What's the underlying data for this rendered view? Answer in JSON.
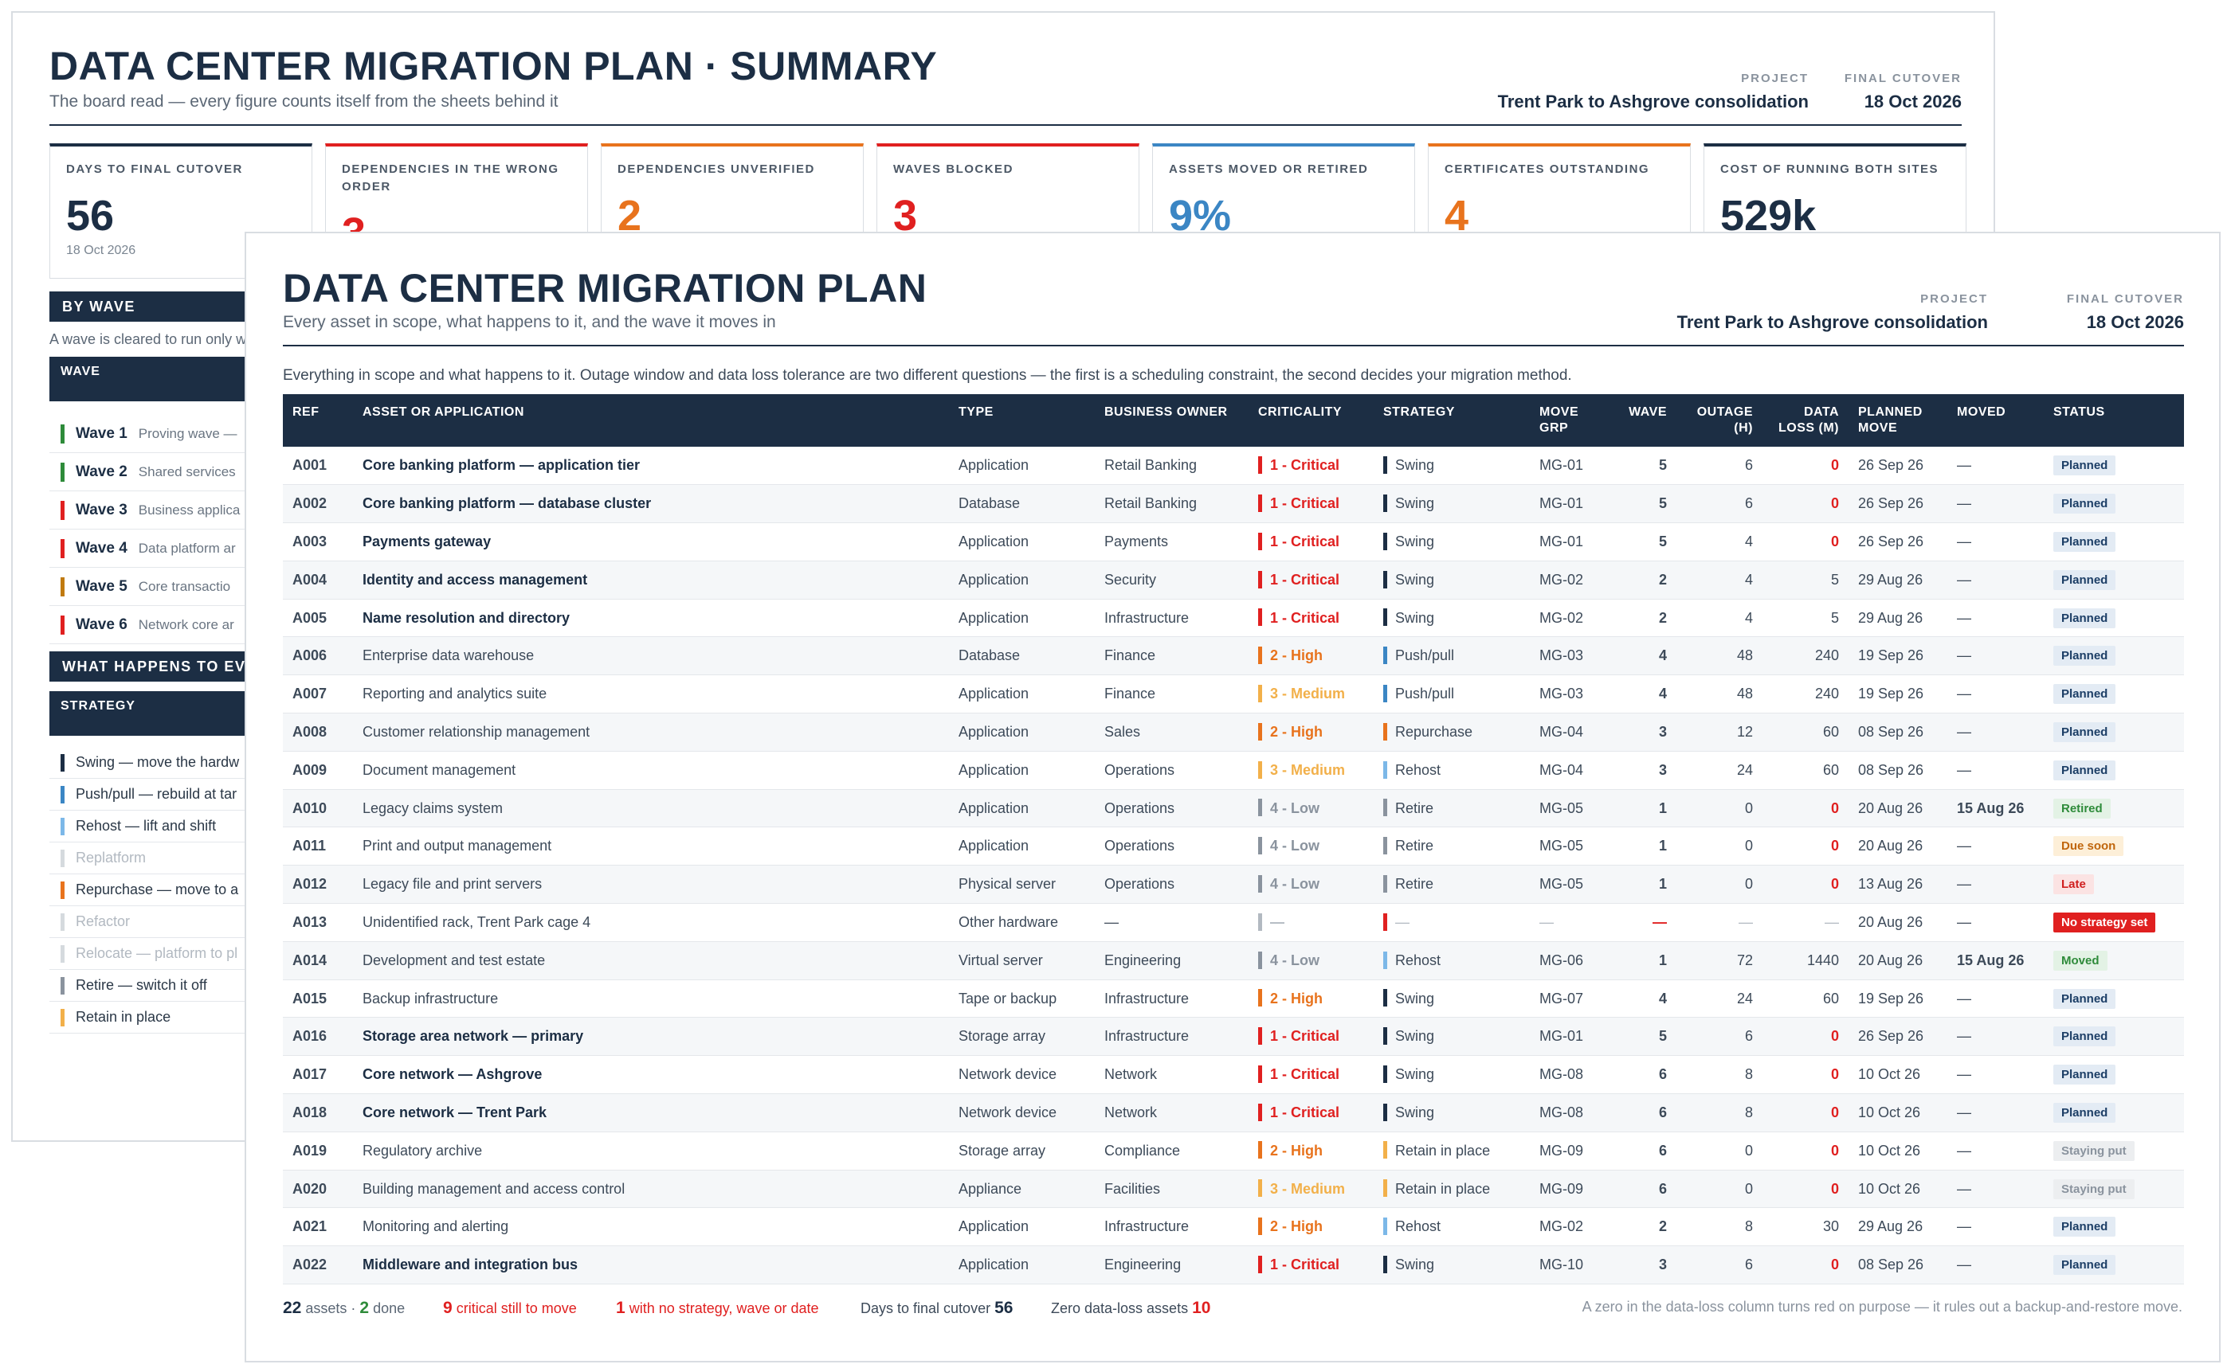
{
  "summary": {
    "title": "DATA CENTER MIGRATION PLAN · SUMMARY",
    "subtitle": "The board read — every figure counts itself from the sheets behind it",
    "meta": {
      "project_label": "PROJECT",
      "project_value": "Trent Park to Ashgrove consolidation",
      "cutover_label": "FINAL CUTOVER",
      "cutover_value": "18 Oct 2026"
    },
    "kpis": [
      {
        "label": "DAYS TO FINAL CUTOVER",
        "value": "56",
        "date": "18 Oct 2026",
        "color": "#1c2e44"
      },
      {
        "label": "DEPENDENCIES IN THE WRONG ORDER",
        "value": "3",
        "date": "",
        "color": "#e02020"
      },
      {
        "label": "DEPENDENCIES UNVERIFIED",
        "value": "2",
        "date": "",
        "color": "#e8731d"
      },
      {
        "label": "WAVES BLOCKED",
        "value": "3",
        "date": "",
        "color": "#e02020"
      },
      {
        "label": "ASSETS MOVED OR RETIRED",
        "value": "9%",
        "date": "",
        "color": "#3b86c4"
      },
      {
        "label": "CERTIFICATES OUTSTANDING",
        "value": "4",
        "date": "",
        "color": "#e8731d"
      },
      {
        "label": "COST OF RUNNING BOTH SITES",
        "value": "529k",
        "date": "",
        "color": "#1c2e44"
      }
    ],
    "by_wave": {
      "heading": "BY WAVE",
      "note": "A wave is cleared to run only w",
      "col": "WAVE",
      "rows": [
        {
          "name": "Wave 1",
          "desc": "Proving wave —",
          "color": "#2e8b3a"
        },
        {
          "name": "Wave 2",
          "desc": "Shared services",
          "color": "#2e8b3a"
        },
        {
          "name": "Wave 3",
          "desc": "Business applica",
          "color": "#e02020"
        },
        {
          "name": "Wave 4",
          "desc": "Data platform ar",
          "color": "#e02020"
        },
        {
          "name": "Wave 5",
          "desc": "Core transactio",
          "color": "#c07a10"
        },
        {
          "name": "Wave 6",
          "desc": "Network core ar",
          "color": "#e02020"
        }
      ]
    },
    "strategies": {
      "heading": "WHAT HAPPENS TO EVE",
      "col": "STRATEGY",
      "rows": [
        {
          "label": "Swing — move the hardw",
          "color": "#1c2e44",
          "dim": false
        },
        {
          "label": "Push/pull — rebuild at tar",
          "color": "#3b86c4",
          "dim": false
        },
        {
          "label": "Rehost — lift and shift",
          "color": "#7cb8e8",
          "dim": false
        },
        {
          "label": "Replatform",
          "color": "#d5dade",
          "dim": true
        },
        {
          "label": "Repurchase — move to a",
          "color": "#e8731d",
          "dim": false
        },
        {
          "label": "Refactor",
          "color": "#d5dade",
          "dim": true
        },
        {
          "label": "Relocate — platform to pl",
          "color": "#d5dade",
          "dim": true
        },
        {
          "label": "Retire — switch it off",
          "color": "#8a939e",
          "dim": false
        },
        {
          "label": "Retain in place",
          "color": "#f2b04a",
          "dim": false
        }
      ]
    }
  },
  "main": {
    "title": "DATA CENTER MIGRATION PLAN",
    "subtitle": "Every asset in scope, what happens to it, and the wave it moves in",
    "meta": {
      "project_label": "PROJECT",
      "project_value": "Trent Park to Ashgrove consolidation",
      "cutover_label": "FINAL CUTOVER",
      "cutover_value": "18 Oct 2026"
    },
    "note": "Everything in scope and what happens to it. Outage window and data loss tolerance are two different questions — the first is a scheduling constraint, the second decides your migration method.",
    "columns": [
      "REF",
      "ASSET OR APPLICATION",
      "TYPE",
      "BUSINESS OWNER",
      "CRITICALITY",
      "STRATEGY",
      "MOVE GRP",
      "WAVE",
      "OUTAGE (H)",
      "DATA LOSS (M)",
      "PLANNED MOVE",
      "MOVED",
      "STATUS"
    ],
    "crit_colors": {
      "1 - Critical": "#e02020",
      "2 - High": "#e8731d",
      "3 - Medium": "#f2b04a",
      "4 - Low": "#8a939e",
      "—": "#b2b9c1"
    },
    "strat_colors": {
      "Swing": "#1c2e44",
      "Push/pull": "#3b86c4",
      "Repurchase": "#e8731d",
      "Rehost": "#7cb8e8",
      "Retire": "#8a939e",
      "Retain in place": "#f2b04a",
      "—": "#e02020"
    },
    "status_styles": {
      "Planned": {
        "bg": "#e3ebf4",
        "fg": "#1c3e66"
      },
      "Retired": {
        "bg": "#e3f2e5",
        "fg": "#2e8b3a"
      },
      "Due soon": {
        "bg": "#fdefd8",
        "fg": "#c0660d"
      },
      "Late": {
        "bg": "#fbe3e3",
        "fg": "#d01f1f"
      },
      "No strategy set": {
        "bg": "#e02020",
        "fg": "#ffffff"
      },
      "Moved": {
        "bg": "#e3f2e5",
        "fg": "#2e8b3a"
      },
      "Staying put": {
        "bg": "#eceef0",
        "fg": "#8a939e"
      }
    },
    "rows": [
      {
        "ref": "A001",
        "name": "Core banking platform — application tier",
        "bold": true,
        "type": "Application",
        "owner": "Retail Banking",
        "crit": "1 - Critical",
        "strategy": "Swing",
        "group": "MG-01",
        "wave": "5",
        "outage": "6",
        "loss": "0",
        "planned": "26 Sep 26",
        "moved": "—",
        "status": "Planned"
      },
      {
        "ref": "A002",
        "name": "Core banking platform — database cluster",
        "bold": true,
        "type": "Database",
        "owner": "Retail Banking",
        "crit": "1 - Critical",
        "strategy": "Swing",
        "group": "MG-01",
        "wave": "5",
        "outage": "6",
        "loss": "0",
        "planned": "26 Sep 26",
        "moved": "—",
        "status": "Planned"
      },
      {
        "ref": "A003",
        "name": "Payments gateway",
        "bold": true,
        "type": "Application",
        "owner": "Payments",
        "crit": "1 - Critical",
        "strategy": "Swing",
        "group": "MG-01",
        "wave": "5",
        "outage": "4",
        "loss": "0",
        "planned": "26 Sep 26",
        "moved": "—",
        "status": "Planned"
      },
      {
        "ref": "A004",
        "name": "Identity and access management",
        "bold": true,
        "type": "Application",
        "owner": "Security",
        "crit": "1 - Critical",
        "strategy": "Swing",
        "group": "MG-02",
        "wave": "2",
        "outage": "4",
        "loss": "5",
        "planned": "29 Aug 26",
        "moved": "—",
        "status": "Planned"
      },
      {
        "ref": "A005",
        "name": "Name resolution and directory",
        "bold": true,
        "type": "Application",
        "owner": "Infrastructure",
        "crit": "1 - Critical",
        "strategy": "Swing",
        "group": "MG-02",
        "wave": "2",
        "outage": "4",
        "loss": "5",
        "planned": "29 Aug 26",
        "moved": "—",
        "status": "Planned"
      },
      {
        "ref": "A006",
        "name": "Enterprise data warehouse",
        "bold": false,
        "type": "Database",
        "owner": "Finance",
        "crit": "2 - High",
        "strategy": "Push/pull",
        "group": "MG-03",
        "wave": "4",
        "outage": "48",
        "loss": "240",
        "planned": "19 Sep 26",
        "moved": "—",
        "status": "Planned"
      },
      {
        "ref": "A007",
        "name": "Reporting and analytics suite",
        "bold": false,
        "type": "Application",
        "owner": "Finance",
        "crit": "3 - Medium",
        "strategy": "Push/pull",
        "group": "MG-03",
        "wave": "4",
        "outage": "48",
        "loss": "240",
        "planned": "19 Sep 26",
        "moved": "—",
        "status": "Planned"
      },
      {
        "ref": "A008",
        "name": "Customer relationship management",
        "bold": false,
        "type": "Application",
        "owner": "Sales",
        "crit": "2 - High",
        "strategy": "Repurchase",
        "group": "MG-04",
        "wave": "3",
        "outage": "12",
        "loss": "60",
        "planned": "08 Sep 26",
        "moved": "—",
        "status": "Planned"
      },
      {
        "ref": "A009",
        "name": "Document management",
        "bold": false,
        "type": "Application",
        "owner": "Operations",
        "crit": "3 - Medium",
        "strategy": "Rehost",
        "group": "MG-04",
        "wave": "3",
        "outage": "24",
        "loss": "60",
        "planned": "08 Sep 26",
        "moved": "—",
        "status": "Planned"
      },
      {
        "ref": "A010",
        "name": "Legacy claims system",
        "bold": false,
        "type": "Application",
        "owner": "Operations",
        "crit": "4 - Low",
        "strategy": "Retire",
        "group": "MG-05",
        "wave": "1",
        "outage": "0",
        "loss": "0",
        "planned": "20 Aug 26",
        "moved": "15 Aug 26",
        "status": "Retired"
      },
      {
        "ref": "A011",
        "name": "Print and output management",
        "bold": false,
        "type": "Application",
        "owner": "Operations",
        "crit": "4 - Low",
        "strategy": "Retire",
        "group": "MG-05",
        "wave": "1",
        "outage": "0",
        "loss": "0",
        "planned": "20 Aug 26",
        "moved": "—",
        "status": "Due soon"
      },
      {
        "ref": "A012",
        "name": "Legacy file and print servers",
        "bold": false,
        "type": "Physical server",
        "owner": "Operations",
        "crit": "4 - Low",
        "strategy": "Retire",
        "group": "MG-05",
        "wave": "1",
        "outage": "0",
        "loss": "0",
        "planned": "13 Aug 26",
        "moved": "—",
        "status": "Late"
      },
      {
        "ref": "A013",
        "name": "Unidentified rack, Trent Park cage 4",
        "bold": false,
        "type": "Other hardware",
        "owner": "—",
        "crit": "—",
        "strategy": "—",
        "group": "—",
        "wave": "—",
        "outage": "—",
        "loss": "—",
        "planned": "20 Aug 26",
        "moved": "—",
        "status": "No strategy set"
      },
      {
        "ref": "A014",
        "name": "Development and test estate",
        "bold": false,
        "type": "Virtual server",
        "owner": "Engineering",
        "crit": "4 - Low",
        "strategy": "Rehost",
        "group": "MG-06",
        "wave": "1",
        "outage": "72",
        "loss": "1440",
        "planned": "20 Aug 26",
        "moved": "15 Aug 26",
        "status": "Moved"
      },
      {
        "ref": "A015",
        "name": "Backup infrastructure",
        "bold": false,
        "type": "Tape or backup",
        "owner": "Infrastructure",
        "crit": "2 - High",
        "strategy": "Swing",
        "group": "MG-07",
        "wave": "4",
        "outage": "24",
        "loss": "60",
        "planned": "19 Sep 26",
        "moved": "—",
        "status": "Planned"
      },
      {
        "ref": "A016",
        "name": "Storage area network — primary",
        "bold": true,
        "type": "Storage array",
        "owner": "Infrastructure",
        "crit": "1 - Critical",
        "strategy": "Swing",
        "group": "MG-01",
        "wave": "5",
        "outage": "6",
        "loss": "0",
        "planned": "26 Sep 26",
        "moved": "—",
        "status": "Planned"
      },
      {
        "ref": "A017",
        "name": "Core network — Ashgrove",
        "bold": true,
        "type": "Network device",
        "owner": "Network",
        "crit": "1 - Critical",
        "strategy": "Swing",
        "group": "MG-08",
        "wave": "6",
        "outage": "8",
        "loss": "0",
        "planned": "10 Oct 26",
        "moved": "—",
        "status": "Planned"
      },
      {
        "ref": "A018",
        "name": "Core network — Trent Park",
        "bold": true,
        "type": "Network device",
        "owner": "Network",
        "crit": "1 - Critical",
        "strategy": "Swing",
        "group": "MG-08",
        "wave": "6",
        "outage": "8",
        "loss": "0",
        "planned": "10 Oct 26",
        "moved": "—",
        "status": "Planned"
      },
      {
        "ref": "A019",
        "name": "Regulatory archive",
        "bold": false,
        "type": "Storage array",
        "owner": "Compliance",
        "crit": "2 - High",
        "strategy": "Retain in place",
        "group": "MG-09",
        "wave": "6",
        "outage": "0",
        "loss": "0",
        "planned": "10 Oct 26",
        "moved": "—",
        "status": "Staying put"
      },
      {
        "ref": "A020",
        "name": "Building management and access control",
        "bold": false,
        "type": "Appliance",
        "owner": "Facilities",
        "crit": "3 - Medium",
        "strategy": "Retain in place",
        "group": "MG-09",
        "wave": "6",
        "outage": "0",
        "loss": "0",
        "planned": "10 Oct 26",
        "moved": "—",
        "status": "Staying put"
      },
      {
        "ref": "A021",
        "name": "Monitoring and alerting",
        "bold": false,
        "type": "Application",
        "owner": "Infrastructure",
        "crit": "2 - High",
        "strategy": "Rehost",
        "group": "MG-02",
        "wave": "2",
        "outage": "8",
        "loss": "30",
        "planned": "29 Aug 26",
        "moved": "—",
        "status": "Planned"
      },
      {
        "ref": "A022",
        "name": "Middleware and integration bus",
        "bold": true,
        "type": "Application",
        "owner": "Engineering",
        "crit": "1 - Critical",
        "strategy": "Swing",
        "group": "MG-10",
        "wave": "3",
        "outage": "6",
        "loss": "0",
        "planned": "08 Sep 26",
        "moved": "—",
        "status": "Planned"
      }
    ],
    "footer": {
      "assets_count": "22",
      "assets_label": "assets ·",
      "done_count": "2",
      "done_label": "done",
      "critical_count": "9",
      "critical_label": "critical still to move",
      "nostrat_count": "1",
      "nostrat_label": "with no strategy, wave or date",
      "days_label": "Days to final cutover",
      "days_value": "56",
      "zero_label": "Zero data-loss assets",
      "zero_value": "10",
      "note": "A zero in the data-loss column turns red on purpose — it rules out a backup-and-restore move."
    }
  }
}
